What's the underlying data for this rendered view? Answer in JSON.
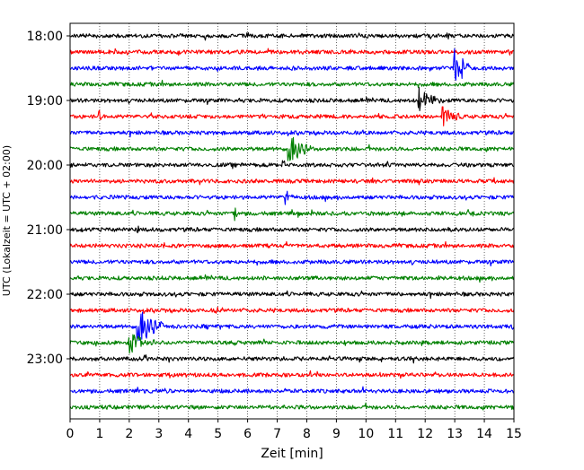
{
  "chart_data": {
    "type": "line",
    "title": "",
    "xlabel": "Zeit  [min]",
    "ylabel": "UTC (Lokalzeit = UTC + 02:00)",
    "xlim": [
      0,
      15
    ],
    "xticks": [
      0,
      1,
      2,
      3,
      4,
      5,
      6,
      7,
      8,
      9,
      10,
      11,
      12,
      13,
      14,
      15
    ],
    "ytick_labels": [
      "18:00",
      "19:00",
      "20:00",
      "21:00",
      "22:00",
      "23:00"
    ],
    "grid": "vertical dotted at each minute",
    "trace_interval_minutes": 15,
    "first_trace_time": "18:00",
    "trace_colors": [
      "#000000",
      "#ff0000",
      "#0000ff",
      "#008000"
    ],
    "traces": [
      {
        "start": "18:00",
        "color": "#000000",
        "events": []
      },
      {
        "start": "18:15",
        "color": "#ff0000",
        "events": []
      },
      {
        "start": "18:30",
        "color": "#0000ff",
        "events": [
          {
            "time_min": 13.0,
            "amplitude": 2.6,
            "duration_min": 0.6
          }
        ]
      },
      {
        "start": "18:45",
        "color": "#008000",
        "events": []
      },
      {
        "start": "19:00",
        "color": "#000000",
        "events": [
          {
            "time_min": 12.0,
            "amplitude": 0.8,
            "duration_min": 0.7
          },
          {
            "time_min": 11.8,
            "amplitude": 3.0,
            "duration_min": 0.05
          }
        ]
      },
      {
        "start": "19:15",
        "color": "#ff0000",
        "events": [
          {
            "time_min": 12.6,
            "amplitude": 1.4,
            "duration_min": 0.6
          },
          {
            "time_min": 1.0,
            "amplitude": 0.8,
            "duration_min": 0.05
          }
        ]
      },
      {
        "start": "19:30",
        "color": "#0000ff",
        "events": []
      },
      {
        "start": "19:45",
        "color": "#008000",
        "events": [
          {
            "time_min": 7.4,
            "amplitude": 2.4,
            "duration_min": 0.7
          }
        ]
      },
      {
        "start": "20:00",
        "color": "#000000",
        "events": [
          {
            "time_min": 7.2,
            "amplitude": 1.2,
            "duration_min": 0.1
          }
        ]
      },
      {
        "start": "20:15",
        "color": "#ff0000",
        "events": []
      },
      {
        "start": "20:30",
        "color": "#0000ff",
        "events": [
          {
            "time_min": 7.3,
            "amplitude": 0.8,
            "duration_min": 0.3
          }
        ]
      },
      {
        "start": "20:45",
        "color": "#008000",
        "events": [
          {
            "time_min": 5.6,
            "amplitude": 0.9,
            "duration_min": 0.1
          }
        ]
      },
      {
        "start": "21:00",
        "color": "#000000",
        "events": [
          {
            "time_min": 2.3,
            "amplitude": 0.9,
            "duration_min": 0.08
          },
          {
            "time_min": 11.8,
            "amplitude": 0.4,
            "duration_min": 0.1
          }
        ]
      },
      {
        "start": "21:15",
        "color": "#ff0000",
        "events": []
      },
      {
        "start": "21:30",
        "color": "#0000ff",
        "events": []
      },
      {
        "start": "21:45",
        "color": "#008000",
        "events": []
      },
      {
        "start": "22:00",
        "color": "#000000",
        "events": []
      },
      {
        "start": "22:15",
        "color": "#ff0000",
        "events": [
          {
            "time_min": 4.9,
            "amplitude": 0.4,
            "duration_min": 0.6
          }
        ]
      },
      {
        "start": "22:30",
        "color": "#0000ff",
        "events": [
          {
            "time_min": 2.3,
            "amplitude": 2.8,
            "duration_min": 0.8
          }
        ]
      },
      {
        "start": "22:45",
        "color": "#008000",
        "events": [
          {
            "time_min": 2.0,
            "amplitude": 1.4,
            "duration_min": 0.9
          }
        ]
      },
      {
        "start": "23:00",
        "color": "#000000",
        "events": []
      },
      {
        "start": "23:15",
        "color": "#ff0000",
        "events": []
      },
      {
        "start": "23:30",
        "color": "#0000ff",
        "events": [
          {
            "time_min": 2.4,
            "amplitude": 0.6,
            "duration_min": 0.05
          }
        ]
      },
      {
        "start": "23:45",
        "color": "#008000",
        "events": []
      }
    ]
  }
}
